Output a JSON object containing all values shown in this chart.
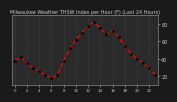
{
  "title": "Milwaukee Weather THSW Index per Hour (F) (Last 24 Hours)",
  "hours": [
    0,
    1,
    2,
    3,
    4,
    5,
    6,
    7,
    8,
    9,
    10,
    11,
    12,
    13,
    14,
    15,
    16,
    17,
    18,
    19,
    20,
    21,
    22,
    23
  ],
  "values": [
    38,
    42,
    35,
    30,
    26,
    22,
    18,
    22,
    38,
    52,
    62,
    70,
    78,
    82,
    75,
    68,
    72,
    65,
    55,
    46,
    40,
    35,
    30,
    22
  ],
  "line_color": "#ff0000",
  "marker_color": "#000000",
  "bg_color": "#1a1a1a",
  "plot_bg_color": "#2a2a2a",
  "grid_color": "#555555",
  "title_color": "#cccccc",
  "tick_color": "#cccccc",
  "spine_color": "#888888",
  "ylim": [
    10,
    90
  ],
  "ytick_vals": [
    20,
    40,
    60,
    80
  ],
  "ytick_labels": [
    "20",
    "40",
    "60",
    "80"
  ],
  "ylabel_fontsize": 3.5,
  "xtick_fontsize": 2.8,
  "title_fontsize": 3.5,
  "linewidth": 0.9,
  "markersize": 1.4
}
